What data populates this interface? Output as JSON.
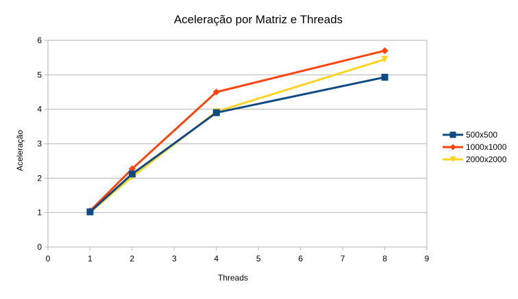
{
  "chart_data": {
    "type": "line",
    "title": "Aceleração por Matriz e Threads",
    "xlabel": "Threads",
    "ylabel": "Aceleração",
    "x": [
      1,
      2,
      4,
      8
    ],
    "x_ticks": [
      "0",
      "1",
      "2",
      "3",
      "4",
      "5",
      "6",
      "7",
      "8",
      "9"
    ],
    "y_ticks": [
      "0",
      "1",
      "2",
      "3",
      "4",
      "5",
      "6"
    ],
    "xlim": [
      0,
      9
    ],
    "ylim": [
      0,
      6
    ],
    "grid": "horizontal",
    "legend_position": "right",
    "series": [
      {
        "name": "500x500",
        "values": [
          1.02,
          2.12,
          3.9,
          4.93
        ],
        "color": "#0e4a84",
        "marker": "square"
      },
      {
        "name": "1000x1000",
        "values": [
          1.05,
          2.27,
          4.5,
          5.7
        ],
        "color": "#ff420e",
        "marker": "diamond"
      },
      {
        "name": "2000x2000",
        "values": [
          1.01,
          2.04,
          3.93,
          5.45
        ],
        "color": "#ffd320",
        "marker": "triangle-down"
      }
    ]
  }
}
